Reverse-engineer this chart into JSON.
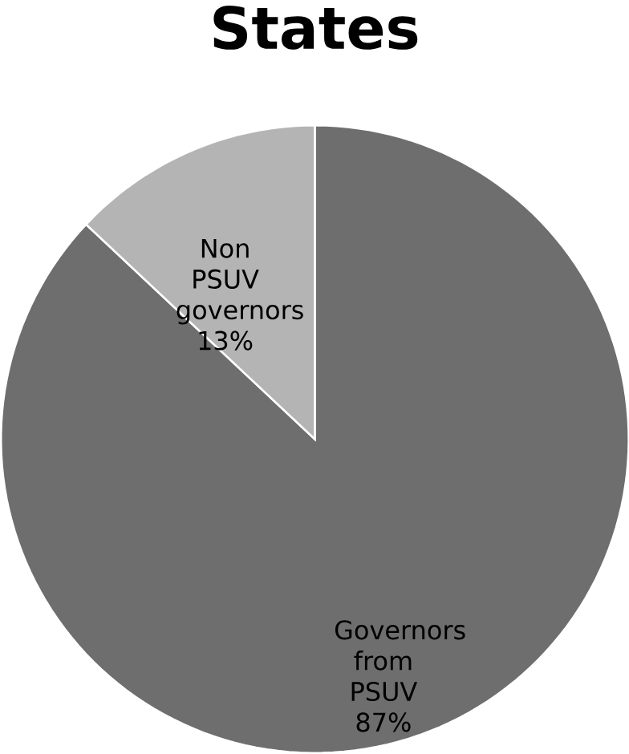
{
  "chart_data": {
    "type": "pie",
    "title": "States",
    "categories": [
      "Governors from PSUV",
      "Non PSUV governors"
    ],
    "values": [
      87,
      13
    ],
    "value_labels": [
      "87%",
      "13%"
    ],
    "colors": [
      "#6e6e6e",
      "#b4b4b4"
    ]
  }
}
